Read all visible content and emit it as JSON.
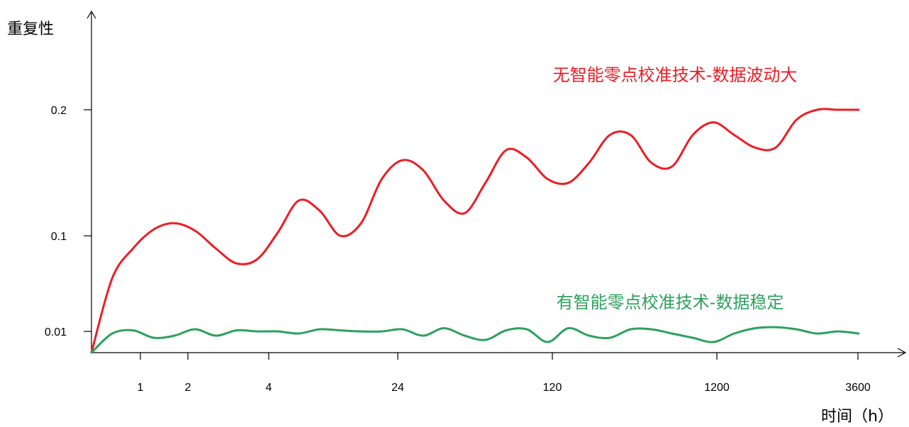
{
  "chart_data": {
    "type": "line",
    "ylabel": "重复性",
    "xlabel": "时间（h）",
    "x_ticks": [
      "1",
      "2",
      "4",
      "24",
      "120",
      "1200",
      "3600"
    ],
    "y_ticks": [
      "0.01",
      "0.1",
      "0.2"
    ],
    "grid": false,
    "series": [
      {
        "label": "无智能零点校准技术-数据波动大",
        "color": "#ee1c25",
        "points": [
          [
            0,
            0.0
          ],
          [
            0.5,
            0.06
          ],
          [
            1,
            0.088
          ],
          [
            1.5,
            0.105
          ],
          [
            2,
            0.11
          ],
          [
            2.5,
            0.104
          ],
          [
            3,
            0.088
          ],
          [
            3.5,
            0.074
          ],
          [
            4,
            0.078
          ],
          [
            4.5,
            0.103
          ],
          [
            5,
            0.128
          ],
          [
            5.5,
            0.12
          ],
          [
            6,
            0.1
          ],
          [
            6.5,
            0.11
          ],
          [
            7,
            0.145
          ],
          [
            7.5,
            0.16
          ],
          [
            8,
            0.152
          ],
          [
            8.5,
            0.128
          ],
          [
            9,
            0.118
          ],
          [
            9.5,
            0.142
          ],
          [
            10,
            0.168
          ],
          [
            10.5,
            0.162
          ],
          [
            11,
            0.145
          ],
          [
            11.5,
            0.142
          ],
          [
            12,
            0.158
          ],
          [
            12.5,
            0.18
          ],
          [
            13,
            0.18
          ],
          [
            13.5,
            0.158
          ],
          [
            14,
            0.155
          ],
          [
            14.5,
            0.18
          ],
          [
            15,
            0.19
          ],
          [
            15.5,
            0.18
          ],
          [
            16,
            0.17
          ],
          [
            16.5,
            0.17
          ],
          [
            17,
            0.192
          ],
          [
            17.5,
            0.2
          ],
          [
            18,
            0.2
          ],
          [
            18.5,
            0.2
          ]
        ]
      },
      {
        "label": "有智能零点校准技术-数据稳定",
        "color": "#2ca15d",
        "points": [
          [
            0,
            0.0
          ],
          [
            0.5,
            0.009
          ],
          [
            1,
            0.011
          ],
          [
            1.5,
            0.007
          ],
          [
            2,
            0.008
          ],
          [
            2.5,
            0.012
          ],
          [
            3,
            0.008
          ],
          [
            3.5,
            0.011
          ],
          [
            4,
            0.01
          ],
          [
            4.5,
            0.01
          ],
          [
            5,
            0.009
          ],
          [
            5.5,
            0.012
          ],
          [
            6,
            0.011
          ],
          [
            6.5,
            0.01
          ],
          [
            7,
            0.01
          ],
          [
            7.5,
            0.012
          ],
          [
            8,
            0.008
          ],
          [
            8.5,
            0.013
          ],
          [
            9,
            0.008
          ],
          [
            9.5,
            0.006
          ],
          [
            10,
            0.011
          ],
          [
            10.5,
            0.012
          ],
          [
            11,
            0.005
          ],
          [
            11.5,
            0.013
          ],
          [
            12,
            0.008
          ],
          [
            12.5,
            0.007
          ],
          [
            13,
            0.012
          ],
          [
            13.5,
            0.012
          ],
          [
            14,
            0.009
          ],
          [
            14.5,
            0.007
          ],
          [
            15,
            0.005
          ],
          [
            15.5,
            0.009
          ],
          [
            16,
            0.013
          ],
          [
            16.5,
            0.014
          ],
          [
            17,
            0.012
          ],
          [
            17.5,
            0.009
          ],
          [
            18,
            0.01
          ],
          [
            18.5,
            0.009
          ]
        ]
      }
    ],
    "axis_color": "#000000"
  }
}
